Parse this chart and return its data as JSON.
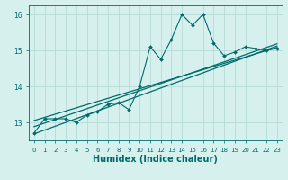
{
  "title": "",
  "xlabel": "Humidex (Indice chaleur)",
  "ylabel": "",
  "background_color": "#d6f0ee",
  "grid_color": "#b8dbd8",
  "line_color": "#006b6b",
  "x": [
    0,
    1,
    2,
    3,
    4,
    5,
    6,
    7,
    8,
    9,
    10,
    11,
    12,
    13,
    14,
    15,
    16,
    17,
    18,
    19,
    20,
    21,
    22,
    23
  ],
  "y_main": [
    12.7,
    13.1,
    13.1,
    13.1,
    13.0,
    13.2,
    13.3,
    13.5,
    13.55,
    13.35,
    14.0,
    15.1,
    14.75,
    15.3,
    16.0,
    15.7,
    16.0,
    15.2,
    14.85,
    14.95,
    15.1,
    15.05,
    15.0,
    15.05
  ],
  "ylim": [
    12.5,
    16.25
  ],
  "xlim": [
    -0.5,
    23.5
  ],
  "yticks": [
    13,
    14,
    15,
    16
  ],
  "xticks": [
    0,
    1,
    2,
    3,
    4,
    5,
    6,
    7,
    8,
    9,
    10,
    11,
    12,
    13,
    14,
    15,
    16,
    17,
    18,
    19,
    20,
    21,
    22,
    23
  ],
  "regression_color": "#006b6b",
  "reg_lines": [
    [
      0,
      23,
      12.88,
      15.18
    ],
    [
      0,
      23,
      13.05,
      15.08
    ],
    [
      0,
      23,
      12.68,
      15.12
    ]
  ]
}
